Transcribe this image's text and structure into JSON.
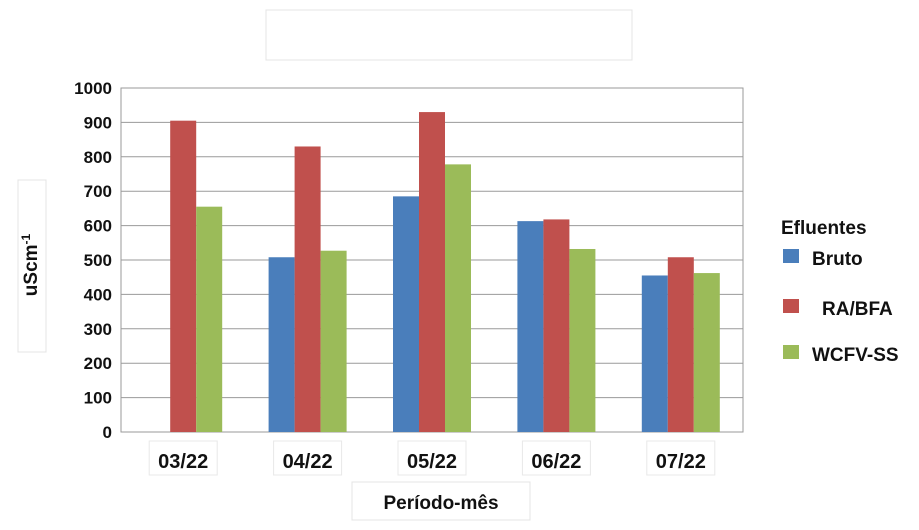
{
  "chart_data": {
    "type": "bar",
    "title": "",
    "xlabel": "Período-mês",
    "ylabel_base": "uScm",
    "ylabel_sup": "-1",
    "categories": [
      "03/22",
      "04/22",
      "05/22",
      "06/22",
      "07/22"
    ],
    "series": [
      {
        "name": "Bruto",
        "color": "#4a7ebb",
        "values": [
          null,
          508,
          685,
          613,
          455
        ]
      },
      {
        "name": "RA/BFA",
        "color": "#c0504d",
        "values": [
          905,
          830,
          930,
          618,
          508
        ]
      },
      {
        "name": "WCFV-SS",
        "color": "#9bbb59",
        "values": [
          655,
          527,
          778,
          532,
          462
        ]
      }
    ],
    "ylim": [
      0,
      1000
    ],
    "yticks": [
      0,
      100,
      200,
      300,
      400,
      500,
      600,
      700,
      800,
      900,
      1000
    ],
    "grid": true,
    "legend_title": "Efluentes",
    "legend_position": "right"
  }
}
